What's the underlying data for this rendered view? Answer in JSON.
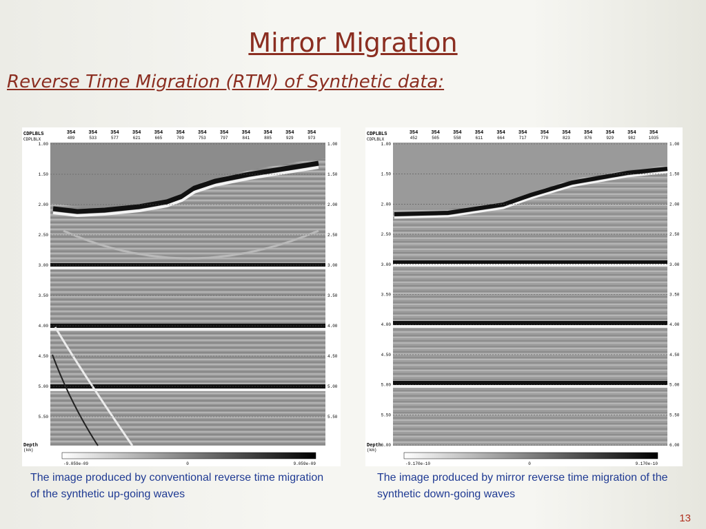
{
  "slide": {
    "title": "Mirror Migration",
    "subtitle": "Reverse Time Migration (RTM) of Synthetic data:",
    "page_number": "13"
  },
  "left_panel": {
    "header_row1_label": "CDPLBLS",
    "header_row2_label": "CDPLBLX",
    "row1_values": [
      "354",
      "354",
      "354",
      "354",
      "354",
      "354",
      "354",
      "354",
      "354",
      "354",
      "354",
      "354"
    ],
    "row2_values": [
      "489",
      "533",
      "577",
      "621",
      "665",
      "709",
      "753",
      "797",
      "841",
      "885",
      "929",
      "973"
    ],
    "depth_ticks": [
      "1.00",
      "1.50",
      "2.00",
      "2.50",
      "3.00",
      "3.50",
      "4.00",
      "4.50",
      "5.00",
      "5.50"
    ],
    "axis_label": "Depth",
    "axis_unit": "(km)",
    "colorbar_min": "-9.059e-09",
    "colorbar_mid": "0",
    "colorbar_max": "9.059e-09",
    "caption": "The image produced by conventional reverse time migration of the synthetic up-going waves"
  },
  "right_panel": {
    "header_row1_label": "CDPLBLS",
    "header_row2_label": "CDPLBLX",
    "row1_values": [
      "354",
      "354",
      "354",
      "354",
      "354",
      "354",
      "354",
      "354",
      "354",
      "354",
      "354",
      "354"
    ],
    "row2_values": [
      "452",
      "505",
      "558",
      "611",
      "664",
      "717",
      "770",
      "823",
      "876",
      "929",
      "982",
      "1035"
    ],
    "depth_ticks": [
      "1.00",
      "1.50",
      "2.00",
      "2.50",
      "3.00",
      "3.50",
      "4.00",
      "4.50",
      "5.00",
      "5.50",
      "6.00"
    ],
    "axis_label": "Depth",
    "axis_unit": "(km)",
    "colorbar_min": "-9.170e-10",
    "colorbar_mid": "0",
    "colorbar_max": "9.170e-10",
    "caption": "The image produced by mirror reverse time migration of the synthetic down-going waves"
  }
}
